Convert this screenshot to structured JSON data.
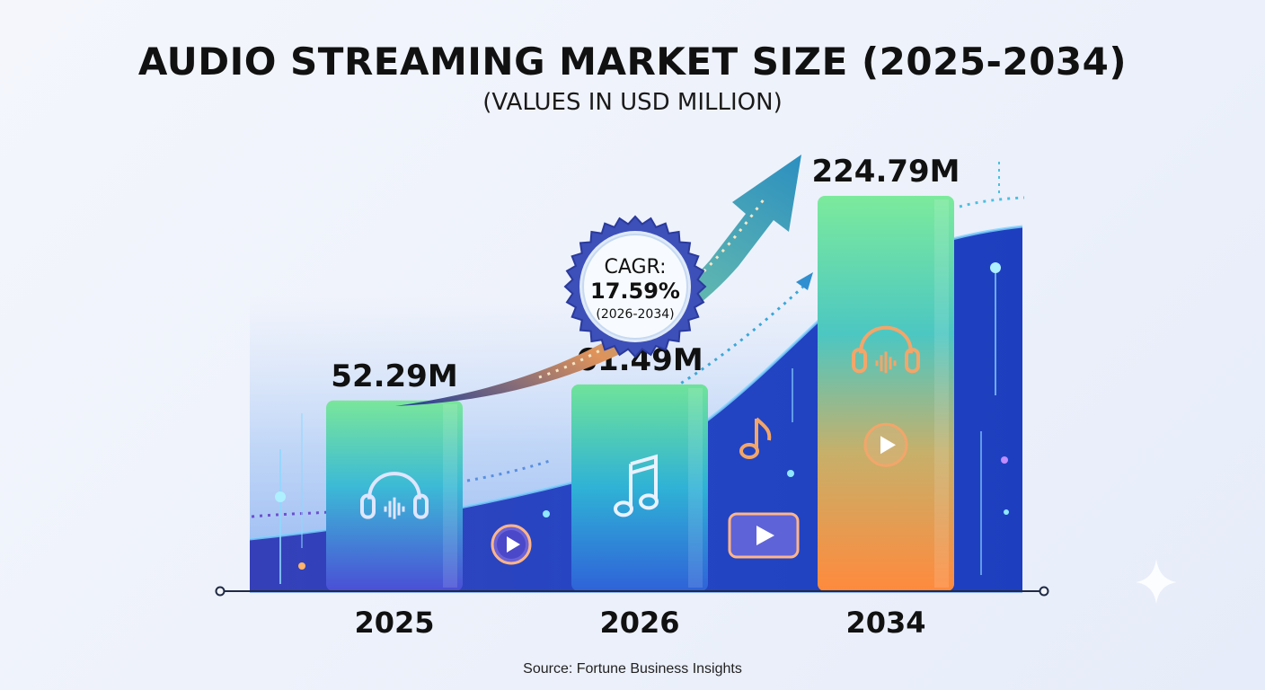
{
  "title": "AUDIO STREAMING MARKET SIZE (2025-2034)",
  "subtitle": "(VALUES IN USD MILLION)",
  "source": "Source: Fortune Business Insights",
  "cagr": {
    "label": "CAGR:",
    "value": "17.59%",
    "period": "(2026-2034)"
  },
  "colors": {
    "bar_top": "#6fe39a",
    "bar_mid": "#3fb7d8",
    "bar_2025_bottom": "#4a4fd6",
    "bar_2026_bottom": "#2f62d8",
    "bar_2034_bottom": "#ff8a3d",
    "arrow": "#2c8fc0",
    "badge_border": "#3d4fb8"
  },
  "icons": [
    "headphones-icon",
    "play-icon",
    "music-note-icon",
    "video-play-icon"
  ],
  "chart_data": {
    "type": "bar",
    "categories": [
      "2025",
      "2026",
      "2034"
    ],
    "values": [
      52.29,
      61.49,
      224.79
    ],
    "data_labels": [
      "52.29M",
      "61.49M",
      "224.79M"
    ],
    "title": "AUDIO STREAMING MARKET SIZE (2025-2034)",
    "subtitle": "(VALUES IN USD MILLION)",
    "grid": false,
    "legend": "none"
  }
}
